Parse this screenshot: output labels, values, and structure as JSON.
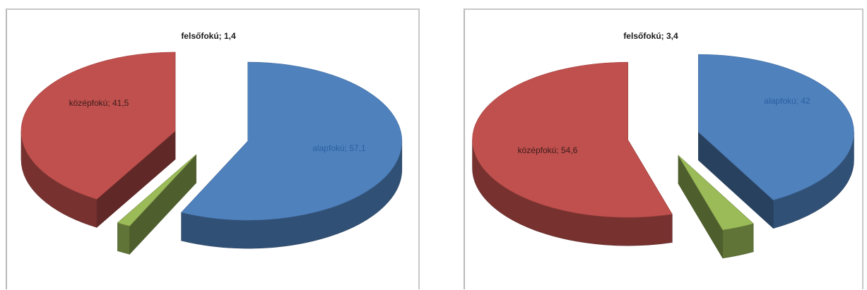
{
  "chart_data": [
    {
      "type": "pie",
      "title": "",
      "series": [
        {
          "label": "alapfokú; 57,1",
          "value": 57.1,
          "color": "#4f81bd"
        },
        {
          "label": "felsőfokú; 1,4",
          "value": 1.4,
          "color": "#9bbb59"
        },
        {
          "label": "középfokú; 41,5",
          "value": 41.5,
          "color": "#c0504d"
        }
      ]
    },
    {
      "type": "pie",
      "title": "",
      "series": [
        {
          "label": "alapfokú; 42",
          "value": 42,
          "color": "#4f81bd"
        },
        {
          "label": "felsőfokú; 3,4",
          "value": 3.4,
          "color": "#9bbb59"
        },
        {
          "label": "középfokú; 54,6",
          "value": 54.6,
          "color": "#c0504d"
        }
      ]
    }
  ]
}
